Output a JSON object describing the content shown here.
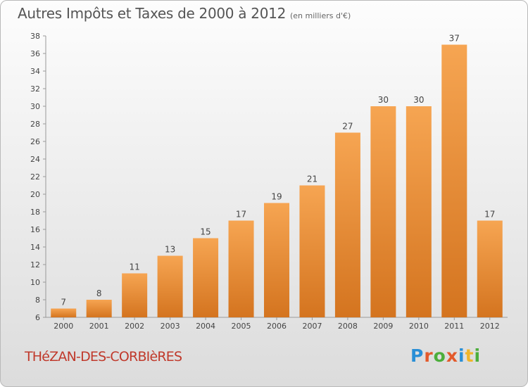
{
  "header": {
    "title": "Autres Impôts et Taxes de 2000 à 2012",
    "subtitle": "(en milliers d'€)"
  },
  "footer": {
    "commune": "THéZAN-DES-CORBIèRES",
    "brand": "Proxiti"
  },
  "colors": {
    "bar_top": "#f6a552",
    "bar_bottom": "#d4741f",
    "brand_letters": [
      "#2a8fd6",
      "#e35a2b",
      "#4cae3c",
      "#e35a2b",
      "#2a8fd6",
      "#f0b52a",
      "#4cae3c"
    ]
  },
  "chart_data": {
    "type": "bar",
    "categories": [
      "2000",
      "2001",
      "2002",
      "2003",
      "2004",
      "2005",
      "2006",
      "2007",
      "2008",
      "2009",
      "2010",
      "2011",
      "2012"
    ],
    "values": [
      7,
      8,
      11,
      13,
      15,
      17,
      19,
      21,
      27,
      30,
      30,
      37,
      17
    ],
    "ylim": [
      6,
      38
    ],
    "yticks": [
      6,
      8,
      10,
      12,
      14,
      16,
      18,
      20,
      22,
      24,
      26,
      28,
      30,
      32,
      34,
      36,
      38
    ],
    "grid": false,
    "data_labels": true
  }
}
